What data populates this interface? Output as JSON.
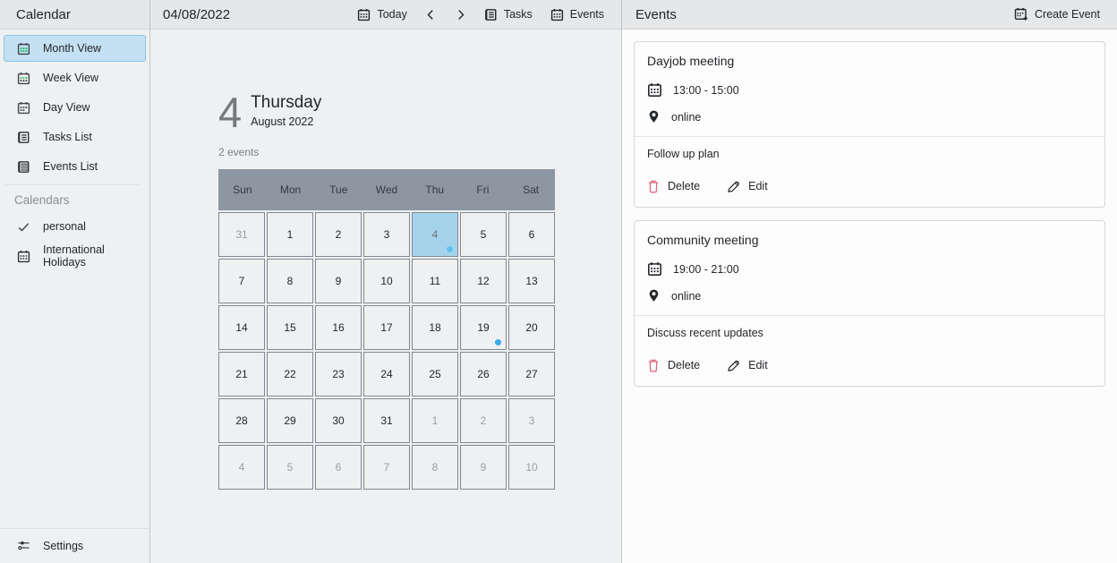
{
  "sidebar": {
    "title": "Calendar",
    "views": [
      {
        "label": "Month View",
        "selected": true
      },
      {
        "label": "Week View",
        "selected": false
      },
      {
        "label": "Day View",
        "selected": false
      },
      {
        "label": "Tasks List",
        "selected": false
      },
      {
        "label": "Events List",
        "selected": false
      }
    ],
    "calendars_label": "Calendars",
    "calendars": [
      {
        "label": "personal"
      },
      {
        "label": "International Holidays"
      }
    ],
    "settings_label": "Settings"
  },
  "toolbar": {
    "date": "04/08/2022",
    "today_label": "Today",
    "tasks_label": "Tasks",
    "events_label": "Events"
  },
  "day_summary": {
    "day_number": "4",
    "day_name": "Thursday",
    "month_year": "August 2022",
    "event_count": "2 events"
  },
  "calendar_grid": {
    "weekdays": [
      "Sun",
      "Mon",
      "Tue",
      "Wed",
      "Thu",
      "Fri",
      "Sat"
    ],
    "rows": [
      [
        {
          "day": "31",
          "outside": true
        },
        {
          "day": "1"
        },
        {
          "day": "2"
        },
        {
          "day": "3"
        },
        {
          "day": "4",
          "selected": true,
          "has_event": true
        },
        {
          "day": "5"
        },
        {
          "day": "6"
        }
      ],
      [
        {
          "day": "7"
        },
        {
          "day": "8"
        },
        {
          "day": "9"
        },
        {
          "day": "10"
        },
        {
          "day": "11"
        },
        {
          "day": "12"
        },
        {
          "day": "13"
        }
      ],
      [
        {
          "day": "14"
        },
        {
          "day": "15"
        },
        {
          "day": "16"
        },
        {
          "day": "17"
        },
        {
          "day": "18"
        },
        {
          "day": "19",
          "has_event": true
        },
        {
          "day": "20"
        }
      ],
      [
        {
          "day": "21"
        },
        {
          "day": "22"
        },
        {
          "day": "23"
        },
        {
          "day": "24"
        },
        {
          "day": "25"
        },
        {
          "day": "26"
        },
        {
          "day": "27"
        }
      ],
      [
        {
          "day": "28"
        },
        {
          "day": "29"
        },
        {
          "day": "30"
        },
        {
          "day": "31"
        },
        {
          "day": "1",
          "outside": true
        },
        {
          "day": "2",
          "outside": true
        },
        {
          "day": "3",
          "outside": true
        }
      ],
      [
        {
          "day": "4",
          "outside": true
        },
        {
          "day": "5",
          "outside": true
        },
        {
          "day": "6",
          "outside": true
        },
        {
          "day": "7",
          "outside": true
        },
        {
          "day": "8",
          "outside": true
        },
        {
          "day": "9",
          "outside": true
        },
        {
          "day": "10",
          "outside": true
        }
      ]
    ]
  },
  "events_panel": {
    "title": "Events",
    "create_event_label": "Create Event",
    "cards": [
      {
        "title": "Dayjob meeting",
        "time": "13:00 - 15:00",
        "location": "online",
        "description": "Follow up plan",
        "delete_label": "Delete",
        "edit_label": "Edit"
      },
      {
        "title": "Community meeting",
        "time": "19:00 - 21:00",
        "location": "online",
        "description": "Discuss recent updates",
        "delete_label": "Delete",
        "edit_label": "Edit"
      }
    ]
  },
  "icons": {
    "month-view-icon": "calendar with green day grid",
    "week-view-icon": "calendar with green top-row dots",
    "day-view-icon": "calendar with dark dots",
    "tasks-list-icon": "notebook list lines",
    "events-list-icon": "dense list lines",
    "check-icon": "checkmark",
    "calendar-icon": "calendar with dark dots",
    "chevron-left-icon": "left angle",
    "chevron-right-icon": "right angle",
    "create-event-icon": "calendar with plus",
    "location-pin-icon": "filled map pin",
    "delete-icon": "red trash can outline",
    "edit-icon": "dark pencil",
    "settings-icon": "two slider lines with knobs"
  },
  "colors": {
    "accent_blue": "#3daee9",
    "selected_day_bg": "#a6d3ec",
    "selected_nav_bg": "#c3e1f3",
    "weekday_header_bg": "#8d97a2",
    "delete_red": "#e0697a",
    "panel_bg": "#eff0f1",
    "events_panel_bg": "#fcfcfc",
    "header_bg": "#e5e7e9",
    "green_icon": "#23b863"
  }
}
